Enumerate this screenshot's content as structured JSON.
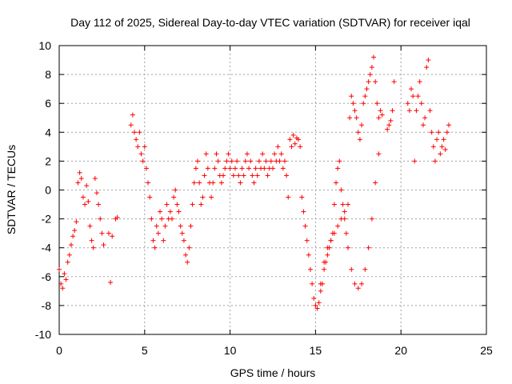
{
  "chart_data": {
    "type": "scatter",
    "title": "Day 112 of 2025, Sidereal Day-to-day VTEC variation (SDTVAR) for receiver iqal",
    "xlabel": "GPS time / hours",
    "ylabel": "SDTVAR / TECUs",
    "xlim": [
      0,
      25
    ],
    "ylim": [
      -10,
      10
    ],
    "xticks": [
      0,
      5,
      10,
      15,
      20,
      25
    ],
    "yticks": [
      -10,
      -8,
      -6,
      -4,
      -2,
      0,
      2,
      4,
      6,
      8,
      10
    ],
    "xtick_labels": [
      "0",
      "5",
      "10",
      "15",
      "20",
      "25"
    ],
    "ytick_labels": [
      "-10",
      "-8",
      "-6",
      "-4",
      "-2",
      "0",
      "2",
      "4",
      "6",
      "8",
      "10"
    ],
    "grid": true,
    "marker": "+",
    "color": "#ff0000",
    "series": [
      {
        "name": "SDTVAR",
        "x": [
          0.0,
          0.1,
          0.2,
          0.3,
          0.4,
          0.5,
          0.6,
          0.7,
          0.8,
          0.9,
          1.0,
          1.1,
          1.2,
          1.3,
          1.4,
          1.5,
          1.6,
          1.7,
          1.8,
          1.9,
          2.0,
          2.1,
          2.2,
          2.3,
          2.4,
          2.5,
          2.6,
          2.9,
          3.0,
          3.1,
          3.3,
          3.4,
          4.2,
          4.3,
          4.4,
          4.5,
          4.6,
          4.7,
          4.8,
          4.9,
          5.0,
          5.1,
          5.2,
          5.3,
          5.4,
          5.5,
          5.6,
          5.7,
          5.8,
          5.9,
          6.0,
          6.1,
          6.2,
          6.3,
          6.4,
          6.5,
          6.6,
          6.7,
          6.8,
          6.9,
          7.0,
          7.1,
          7.2,
          7.3,
          7.4,
          7.5,
          7.6,
          7.7,
          7.8,
          7.9,
          8.0,
          8.1,
          8.2,
          8.3,
          8.4,
          8.5,
          8.6,
          8.7,
          8.8,
          8.9,
          9.0,
          9.1,
          9.2,
          9.3,
          9.4,
          9.5,
          9.6,
          9.7,
          9.8,
          9.9,
          10.0,
          10.1,
          10.2,
          10.3,
          10.4,
          10.5,
          10.6,
          10.7,
          10.8,
          10.9,
          11.0,
          11.1,
          11.2,
          11.3,
          11.4,
          11.5,
          11.6,
          11.7,
          11.8,
          11.9,
          12.0,
          12.1,
          12.2,
          12.3,
          12.4,
          12.5,
          12.6,
          12.7,
          12.8,
          12.9,
          13.0,
          13.1,
          13.2,
          13.3,
          13.4,
          13.5,
          13.6,
          13.7,
          13.8,
          13.9,
          14.0,
          14.1,
          14.2,
          14.3,
          14.4,
          14.5,
          14.6,
          14.7,
          14.8,
          14.9,
          15.0,
          15.1,
          15.2,
          15.3,
          15.4,
          15.5,
          15.6,
          15.7,
          15.8,
          15.9,
          16.0,
          16.1,
          16.2,
          16.3,
          16.4,
          16.5,
          16.6,
          16.7,
          16.8,
          16.9,
          17.0,
          17.1,
          17.2,
          17.3,
          17.4,
          17.5,
          17.6,
          17.7,
          17.8,
          17.9,
          18.0,
          18.1,
          18.2,
          18.3,
          18.4,
          18.5,
          18.6,
          18.7,
          18.8,
          18.9,
          15.3,
          15.5,
          15.7,
          15.9,
          16.1,
          16.3,
          16.5,
          16.7,
          16.9,
          17.1,
          17.3,
          17.5,
          17.7,
          17.9,
          18.1,
          18.3,
          18.5,
          18.7,
          19.2,
          19.3,
          19.4,
          19.5,
          19.6,
          20.4,
          20.5,
          20.6,
          20.7,
          20.8,
          20.9,
          21.0,
          21.1,
          21.2,
          21.3,
          21.4,
          21.5,
          21.6,
          21.7,
          21.8,
          21.9,
          22.0,
          22.1,
          22.2,
          22.3,
          22.4,
          22.5,
          22.6,
          22.7,
          22.8
        ],
        "y": [
          -5.5,
          -6.5,
          -6.8,
          -5.8,
          -6.2,
          -5.0,
          -4.5,
          -3.8,
          -3.2,
          -2.8,
          -2.2,
          0.5,
          1.2,
          0.8,
          -0.5,
          -1.0,
          0.3,
          -0.8,
          -2.5,
          -3.5,
          -4.0,
          0.8,
          -0.2,
          -1.0,
          -2.0,
          -3.0,
          -3.8,
          -3.0,
          -6.4,
          -3.2,
          -2.0,
          -1.9,
          4.5,
          5.2,
          4.0,
          3.5,
          3.0,
          4.0,
          2.5,
          2.0,
          3.0,
          1.5,
          0.5,
          -0.5,
          -2.0,
          -3.5,
          -4.0,
          -2.5,
          -3.0,
          -1.5,
          -2.0,
          -3.5,
          -2.5,
          -1.0,
          -2.0,
          -1.5,
          -2.0,
          -0.5,
          0.0,
          -1.0,
          -1.5,
          -2.5,
          -3.0,
          -3.5,
          -4.5,
          -5.0,
          -4.0,
          -2.5,
          -1.0,
          0.5,
          1.5,
          2.0,
          0.5,
          -1.0,
          -0.5,
          1.0,
          2.5,
          1.5,
          0.5,
          -0.5,
          0.5,
          1.5,
          2.5,
          2.0,
          1.0,
          0.5,
          1.0,
          1.5,
          2.0,
          2.5,
          1.5,
          2.0,
          1.0,
          1.5,
          2.0,
          1.0,
          0.5,
          1.5,
          1.0,
          2.0,
          2.5,
          1.5,
          2.0,
          1.0,
          0.5,
          1.5,
          1.0,
          2.0,
          1.5,
          2.5,
          1.5,
          2.0,
          1.0,
          1.5,
          2.0,
          1.5,
          2.5,
          2.0,
          3.0,
          2.0,
          2.5,
          1.5,
          2.0,
          1.0,
          -0.5,
          3.5,
          3.0,
          3.8,
          3.2,
          3.6,
          3.5,
          3.0,
          -0.5,
          -1.5,
          -2.5,
          -3.5,
          -4.5,
          -5.5,
          -6.5,
          -7.5,
          -8.0,
          -8.2,
          -7.8,
          -7.0,
          -6.5,
          -5.5,
          -5.0,
          -4.5,
          -4.0,
          -3.5,
          -3.0,
          -1.0,
          0.5,
          1.5,
          2.0,
          0.0,
          -1.0,
          -2.0,
          -3.0,
          -4.0,
          5.0,
          6.5,
          6.0,
          5.5,
          5.0,
          4.0,
          3.5,
          4.5,
          6.0,
          6.5,
          7.0,
          7.5,
          8.0,
          8.5,
          9.2,
          7.5,
          6.0,
          5.0,
          5.5,
          5.2,
          -6.5,
          -5.0,
          -4.0,
          -3.5,
          -3.0,
          -2.5,
          -2.0,
          -1.5,
          -1.0,
          -5.5,
          -6.5,
          -6.8,
          -6.5,
          -5.5,
          -4.0,
          -2.0,
          0.5,
          2.5,
          4.2,
          4.5,
          4.8,
          5.5,
          7.5,
          6.0,
          5.5,
          7.0,
          6.5,
          2.0,
          5.5,
          6.5,
          7.5,
          6.0,
          4.5,
          5.0,
          8.5,
          9.0,
          5.5,
          4.0,
          3.0,
          2.0,
          3.5,
          4.0,
          2.5,
          3.0,
          3.5,
          2.8,
          4.0,
          4.5
        ]
      }
    ]
  }
}
